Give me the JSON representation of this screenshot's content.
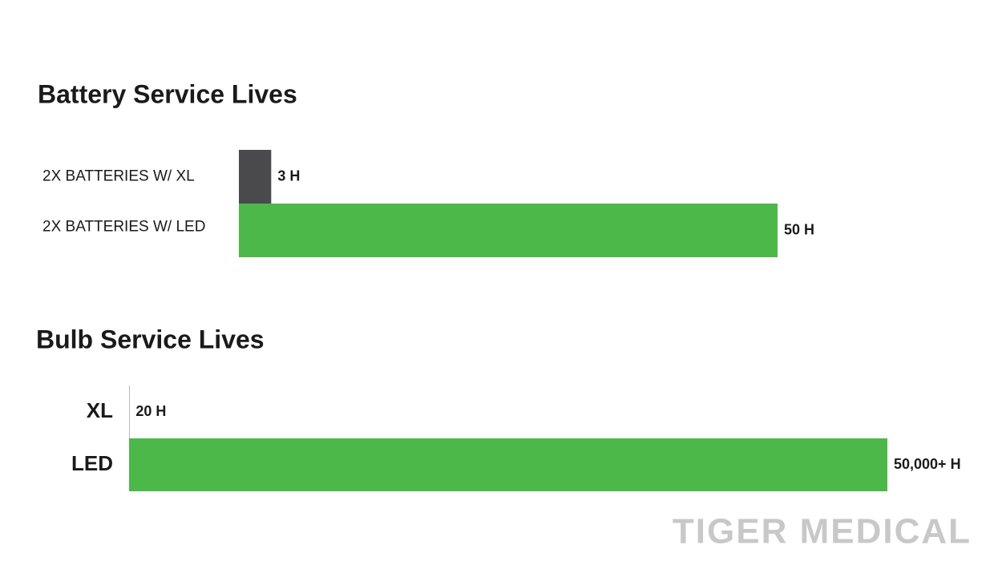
{
  "chart_data": [
    {
      "type": "bar",
      "orientation": "horizontal",
      "title": "Battery Service Lives",
      "categories": [
        "2X BATTERIES W/ XL",
        "2X BATTERIES W/ LED"
      ],
      "values": [
        3,
        50
      ],
      "value_labels": [
        "3 H",
        "50 H"
      ],
      "colors": [
        "#4a4a4c",
        "#4cb84a"
      ]
    },
    {
      "type": "bar",
      "orientation": "horizontal",
      "title": "Bulb Service Lives",
      "categories": [
        "XL",
        "LED"
      ],
      "values": [
        20,
        50000
      ],
      "value_labels": [
        "20 H",
        "50,000+ H"
      ],
      "colors": [
        "#4a4a4c",
        "#4cb84a"
      ]
    }
  ],
  "watermark": "TIGER MEDICAL"
}
